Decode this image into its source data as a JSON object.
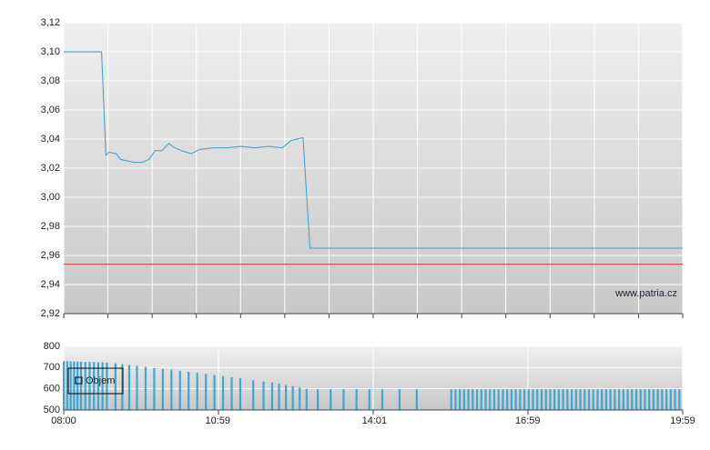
{
  "chart_data": [
    {
      "type": "line",
      "x": [
        480,
        524,
        529,
        533,
        541,
        546,
        554,
        562,
        571,
        579,
        586,
        594,
        602,
        609,
        617,
        628,
        639,
        654,
        670,
        686,
        702,
        718,
        734,
        744,
        758,
        766,
        1199
      ],
      "series": [
        {
          "color": "#3d9bc6",
          "values": [
            3.1,
            3.1,
            3.029,
            3.031,
            3.03,
            3.026,
            3.025,
            3.024,
            3.024,
            3.026,
            3.032,
            3.032,
            3.037,
            3.034,
            3.032,
            3.03,
            3.033,
            3.034,
            3.034,
            3.035,
            3.034,
            3.035,
            3.034,
            3.039,
            3.041,
            2.965,
            2.965
          ]
        }
      ],
      "xlim": [
        480,
        1199
      ],
      "ylim": [
        2.92,
        3.12
      ],
      "yticks": [
        {
          "value": 2.92,
          "label": "2,92"
        },
        {
          "value": 2.94,
          "label": "2,94"
        },
        {
          "value": 2.96,
          "label": "2,96"
        },
        {
          "value": 2.98,
          "label": "2,98"
        },
        {
          "value": 3.0,
          "label": "3,00"
        },
        {
          "value": 3.02,
          "label": "3,02"
        },
        {
          "value": 3.04,
          "label": "3,04"
        },
        {
          "value": 3.06,
          "label": "3,06"
        },
        {
          "value": 3.08,
          "label": "3,08"
        },
        {
          "value": 3.1,
          "label": "3,10"
        },
        {
          "value": 3.12,
          "label": "3,12"
        }
      ],
      "reference_line": {
        "value": 2.954,
        "color": "#d03a3a"
      },
      "watermark": "www.patria.cz",
      "grid": true
    },
    {
      "type": "bar",
      "x": [
        480,
        484,
        488,
        492,
        496,
        500,
        505,
        510,
        515,
        520,
        525,
        530,
        540,
        548,
        556,
        565,
        575,
        585,
        595,
        605,
        615,
        625,
        635,
        645,
        655,
        665,
        675,
        685,
        700,
        712,
        722,
        730,
        738,
        746,
        754,
        762,
        775,
        790,
        805,
        820,
        835,
        850,
        870,
        890,
        930,
        935,
        940,
        945,
        950,
        955,
        960,
        965,
        970,
        975,
        980,
        985,
        990,
        995,
        1000,
        1005,
        1010,
        1015,
        1020,
        1025,
        1030,
        1035,
        1040,
        1045,
        1050,
        1055,
        1060,
        1065,
        1070,
        1075,
        1080,
        1085,
        1090,
        1095,
        1100,
        1105,
        1110,
        1115,
        1120,
        1125,
        1130,
        1135,
        1140,
        1145,
        1150,
        1155,
        1160,
        1165,
        1170,
        1175,
        1180,
        1185,
        1190,
        1195
      ],
      "series": [
        {
          "name": "Objem",
          "color": "#43a5cf",
          "values": [
            730,
            730,
            729,
            729,
            728,
            728,
            727,
            727,
            726,
            726,
            725,
            724,
            720,
            716,
            712,
            708,
            703,
            698,
            694,
            690,
            685,
            680,
            675,
            670,
            665,
            660,
            655,
            650,
            640,
            634,
            630,
            624,
            618,
            612,
            606,
            600,
            598,
            598,
            598,
            598,
            598,
            598,
            598,
            598,
            598,
            598,
            598,
            598,
            598,
            598,
            598,
            598,
            598,
            598,
            598,
            598,
            598,
            598,
            598,
            598,
            598,
            598,
            598,
            598,
            598,
            598,
            598,
            598,
            598,
            598,
            598,
            598,
            598,
            598,
            598,
            598,
            598,
            598,
            598,
            598,
            598,
            598,
            598,
            598,
            598,
            598,
            598,
            598,
            598,
            598,
            598,
            598,
            598,
            598,
            598,
            598,
            598,
            598
          ]
        }
      ],
      "xlim": [
        480,
        1199
      ],
      "xticks": [
        {
          "value": 480,
          "label": "08:00"
        },
        {
          "value": 659,
          "label": "10:59"
        },
        {
          "value": 841,
          "label": "14:01"
        },
        {
          "value": 1019,
          "label": "16:59"
        },
        {
          "value": 1199,
          "label": "19:59"
        }
      ],
      "ylim": [
        500,
        800
      ],
      "yticks": [
        500,
        600,
        700,
        800
      ],
      "legend": "upper left",
      "grid": true
    }
  ]
}
